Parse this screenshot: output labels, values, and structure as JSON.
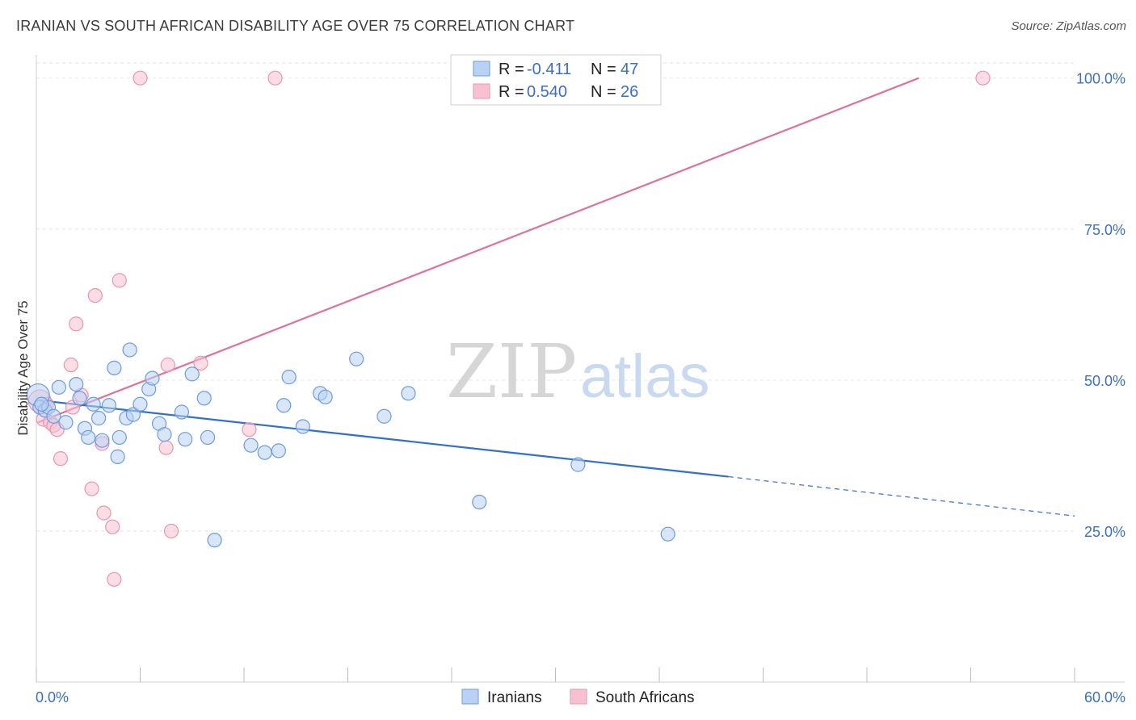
{
  "title": "IRANIAN VS SOUTH AFRICAN DISABILITY AGE OVER 75 CORRELATION CHART",
  "source": "Source: ZipAtlas.com",
  "watermark": {
    "zip": "ZIP",
    "atlas": "atlas"
  },
  "colors": {
    "blue_fill": "#b9d1f2",
    "blue_stroke": "#6b9be0",
    "blue_line": "#2e6fd0",
    "pink_fill": "#f7c1d1",
    "pink_stroke": "#e995b0",
    "pink_line": "#e0719a",
    "grid": "#e5e5e5",
    "tick_text": "#3b6fc4"
  },
  "legend": {
    "rows": [
      {
        "r_label": "R = ",
        "r_value": "-0.411",
        "n_label": "N = ",
        "n_value": "47"
      },
      {
        "r_label": "R = ",
        "r_value": "0.540",
        "n_label": "N = ",
        "n_value": "26"
      }
    ]
  },
  "chart_data": {
    "type": "scatter",
    "ylabel": "Disability Age Over 75",
    "x_ticks": [
      "0.0%",
      "60.0%"
    ],
    "y_ticks": [
      "100.0%",
      "75.0%",
      "50.0%",
      "25.0%"
    ],
    "xlim": [
      0,
      60
    ],
    "ylim": [
      0,
      102.5
    ],
    "y_tick_values": [
      100,
      75,
      50,
      25
    ],
    "legend_position": "top-center",
    "series": [
      {
        "name": "Iranians",
        "color": "#6b9be0",
        "r": -0.411,
        "n": 47,
        "points": [
          [
            0.1,
            47.5
          ],
          [
            0.2,
            45.5
          ],
          [
            0.5,
            45.0
          ],
          [
            0.7,
            45.5
          ],
          [
            1.0,
            44.0
          ],
          [
            1.3,
            48.8
          ],
          [
            1.7,
            43.0
          ],
          [
            2.3,
            49.3
          ],
          [
            2.5,
            47.0
          ],
          [
            2.8,
            42.0
          ],
          [
            3.0,
            40.5
          ],
          [
            3.3,
            46.0
          ],
          [
            3.6,
            43.7
          ],
          [
            3.8,
            40.0
          ],
          [
            4.2,
            45.8
          ],
          [
            4.5,
            52.0
          ],
          [
            4.7,
            37.3
          ],
          [
            4.8,
            40.5
          ],
          [
            5.2,
            43.7
          ],
          [
            5.4,
            55.0
          ],
          [
            5.6,
            44.3
          ],
          [
            6.0,
            46.0
          ],
          [
            6.5,
            48.5
          ],
          [
            6.7,
            50.3
          ],
          [
            7.1,
            42.8
          ],
          [
            7.4,
            41.0
          ],
          [
            8.4,
            44.7
          ],
          [
            8.6,
            40.2
          ],
          [
            9.0,
            51.0
          ],
          [
            9.7,
            47.0
          ],
          [
            9.9,
            40.5
          ],
          [
            10.3,
            23.5
          ],
          [
            12.4,
            39.2
          ],
          [
            13.2,
            38.0
          ],
          [
            14.0,
            38.3
          ],
          [
            14.3,
            45.8
          ],
          [
            14.6,
            50.5
          ],
          [
            15.4,
            42.3
          ],
          [
            16.4,
            47.8
          ],
          [
            16.7,
            47.2
          ],
          [
            18.5,
            53.5
          ],
          [
            20.1,
            44.0
          ],
          [
            21.5,
            47.8
          ],
          [
            25.6,
            29.8
          ],
          [
            31.3,
            36.0
          ],
          [
            36.5,
            24.5
          ],
          [
            0.3,
            46.0
          ]
        ],
        "trend": {
          "x0": 0.3,
          "y0": 46.6,
          "x1": 40.0,
          "y1": 34.0,
          "dash_x1": 60.0,
          "dash_y1": 27.5
        }
      },
      {
        "name": "South Africans",
        "color": "#e995b0",
        "r": 0.54,
        "n": 26,
        "points": [
          [
            0.2,
            46.5
          ],
          [
            0.4,
            43.5
          ],
          [
            0.8,
            43.0
          ],
          [
            1.0,
            42.5
          ],
          [
            1.2,
            41.8
          ],
          [
            1.4,
            37.0
          ],
          [
            2.0,
            52.5
          ],
          [
            2.1,
            45.5
          ],
          [
            2.3,
            59.3
          ],
          [
            2.6,
            47.5
          ],
          [
            3.2,
            32.0
          ],
          [
            3.4,
            64.0
          ],
          [
            3.8,
            39.5
          ],
          [
            3.9,
            28.0
          ],
          [
            4.4,
            25.7
          ],
          [
            4.5,
            17.0
          ],
          [
            4.8,
            66.5
          ],
          [
            6.0,
            100.0
          ],
          [
            7.5,
            38.8
          ],
          [
            7.6,
            52.5
          ],
          [
            7.8,
            25.0
          ],
          [
            9.5,
            52.8
          ],
          [
            12.3,
            41.8
          ],
          [
            13.8,
            100.0
          ],
          [
            54.7,
            100.0
          ],
          [
            0.6,
            46.0
          ]
        ],
        "trend": {
          "x0": 0.1,
          "y0": 43.0,
          "x1": 51.0,
          "y1": 100.0
        }
      }
    ]
  }
}
